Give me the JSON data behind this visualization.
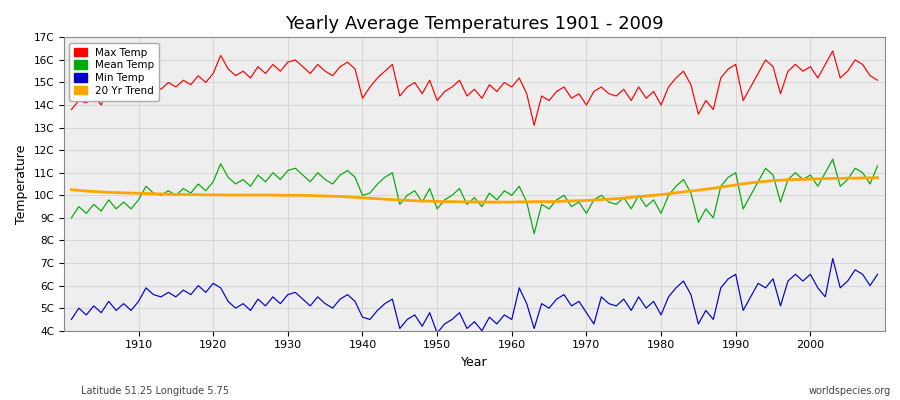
{
  "title": "Yearly Average Temperatures 1901 - 2009",
  "xlabel": "Year",
  "ylabel": "Temperature",
  "subtitle_left": "Latitude 51.25 Longitude 5.75",
  "subtitle_right": "worldspecies.org",
  "years": [
    1901,
    1902,
    1903,
    1904,
    1905,
    1906,
    1907,
    1908,
    1909,
    1910,
    1911,
    1912,
    1913,
    1914,
    1915,
    1916,
    1917,
    1918,
    1919,
    1920,
    1921,
    1922,
    1923,
    1924,
    1925,
    1926,
    1927,
    1928,
    1929,
    1930,
    1931,
    1932,
    1933,
    1934,
    1935,
    1936,
    1937,
    1938,
    1939,
    1940,
    1941,
    1942,
    1943,
    1944,
    1945,
    1946,
    1947,
    1948,
    1949,
    1950,
    1951,
    1952,
    1953,
    1954,
    1955,
    1956,
    1957,
    1958,
    1959,
    1960,
    1961,
    1962,
    1963,
    1964,
    1965,
    1966,
    1967,
    1968,
    1969,
    1970,
    1971,
    1972,
    1973,
    1974,
    1975,
    1976,
    1977,
    1978,
    1979,
    1980,
    1981,
    1982,
    1983,
    1984,
    1985,
    1986,
    1987,
    1988,
    1989,
    1990,
    1991,
    1992,
    1993,
    1994,
    1995,
    1996,
    1997,
    1998,
    1999,
    2000,
    2001,
    2002,
    2003,
    2004,
    2005,
    2006,
    2007,
    2008,
    2009
  ],
  "max_temp": [
    13.8,
    14.2,
    14.1,
    14.4,
    14.0,
    14.8,
    14.3,
    14.5,
    14.2,
    14.6,
    15.2,
    14.9,
    14.7,
    15.0,
    14.8,
    15.1,
    14.9,
    15.3,
    15.0,
    15.4,
    16.2,
    15.6,
    15.3,
    15.5,
    15.2,
    15.7,
    15.4,
    15.8,
    15.5,
    15.9,
    16.0,
    15.7,
    15.4,
    15.8,
    15.5,
    15.3,
    15.7,
    15.9,
    15.6,
    14.3,
    14.8,
    15.2,
    15.5,
    15.8,
    14.4,
    14.8,
    15.0,
    14.5,
    15.1,
    14.2,
    14.6,
    14.8,
    15.1,
    14.4,
    14.7,
    14.3,
    14.9,
    14.6,
    15.0,
    14.8,
    15.2,
    14.5,
    13.1,
    14.4,
    14.2,
    14.6,
    14.8,
    14.3,
    14.5,
    14.0,
    14.6,
    14.8,
    14.5,
    14.4,
    14.7,
    14.2,
    14.8,
    14.3,
    14.6,
    14.0,
    14.8,
    15.2,
    15.5,
    14.9,
    13.6,
    14.2,
    13.8,
    15.2,
    15.6,
    15.8,
    14.2,
    14.8,
    15.4,
    16.0,
    15.7,
    14.5,
    15.5,
    15.8,
    15.5,
    15.7,
    15.2,
    15.8,
    16.4,
    15.2,
    15.5,
    16.0,
    15.8,
    15.3,
    15.1
  ],
  "mean_temp": [
    9.0,
    9.5,
    9.2,
    9.6,
    9.3,
    9.8,
    9.4,
    9.7,
    9.4,
    9.8,
    10.4,
    10.1,
    10.0,
    10.2,
    10.0,
    10.3,
    10.1,
    10.5,
    10.2,
    10.6,
    11.4,
    10.8,
    10.5,
    10.7,
    10.4,
    10.9,
    10.6,
    11.0,
    10.7,
    11.1,
    11.2,
    10.9,
    10.6,
    11.0,
    10.7,
    10.5,
    10.9,
    11.1,
    10.8,
    10.0,
    10.1,
    10.5,
    10.8,
    11.0,
    9.6,
    10.0,
    10.2,
    9.7,
    10.3,
    9.4,
    9.8,
    10.0,
    10.3,
    9.6,
    9.9,
    9.5,
    10.1,
    9.8,
    10.2,
    10.0,
    10.4,
    9.7,
    8.3,
    9.6,
    9.4,
    9.8,
    10.0,
    9.5,
    9.7,
    9.2,
    9.8,
    10.0,
    9.7,
    9.6,
    9.9,
    9.4,
    10.0,
    9.5,
    9.8,
    9.2,
    10.0,
    10.4,
    10.7,
    10.1,
    8.8,
    9.4,
    9.0,
    10.4,
    10.8,
    11.0,
    9.4,
    10.0,
    10.6,
    11.2,
    10.9,
    9.7,
    10.7,
    11.0,
    10.7,
    10.9,
    10.4,
    11.0,
    11.6,
    10.4,
    10.7,
    11.2,
    11.0,
    10.5,
    11.3
  ],
  "min_temp": [
    4.5,
    5.0,
    4.7,
    5.1,
    4.8,
    5.3,
    4.9,
    5.2,
    4.9,
    5.3,
    5.9,
    5.6,
    5.5,
    5.7,
    5.5,
    5.8,
    5.6,
    6.0,
    5.7,
    6.1,
    5.9,
    5.3,
    5.0,
    5.2,
    4.9,
    5.4,
    5.1,
    5.5,
    5.2,
    5.6,
    5.7,
    5.4,
    5.1,
    5.5,
    5.2,
    5.0,
    5.4,
    5.6,
    5.3,
    4.6,
    4.5,
    4.9,
    5.2,
    5.4,
    4.1,
    4.5,
    4.7,
    4.2,
    4.8,
    3.9,
    4.3,
    4.5,
    4.8,
    4.1,
    4.4,
    4.0,
    4.6,
    4.3,
    4.7,
    4.5,
    5.9,
    5.2,
    4.1,
    5.2,
    5.0,
    5.4,
    5.6,
    5.1,
    5.3,
    4.8,
    4.3,
    5.5,
    5.2,
    5.1,
    5.4,
    4.9,
    5.5,
    5.0,
    5.3,
    4.7,
    5.5,
    5.9,
    6.2,
    5.6,
    4.3,
    4.9,
    4.5,
    5.9,
    6.3,
    6.5,
    4.9,
    5.5,
    6.1,
    5.9,
    6.3,
    5.1,
    6.2,
    6.5,
    6.2,
    6.5,
    5.9,
    5.5,
    7.2,
    5.9,
    6.2,
    6.7,
    6.5,
    6.0,
    6.5
  ],
  "trend_temp": [
    10.25,
    10.22,
    10.19,
    10.17,
    10.15,
    10.13,
    10.12,
    10.11,
    10.1,
    10.09,
    10.08,
    10.07,
    10.06,
    10.05,
    10.04,
    10.04,
    10.03,
    10.03,
    10.02,
    10.02,
    10.02,
    10.01,
    10.01,
    10.01,
    10.01,
    10.01,
    10.01,
    10.01,
    10.0,
    10.0,
    10.0,
    10.0,
    9.99,
    9.98,
    9.97,
    9.96,
    9.95,
    9.93,
    9.91,
    9.89,
    9.87,
    9.85,
    9.83,
    9.81,
    9.79,
    9.78,
    9.76,
    9.75,
    9.74,
    9.73,
    9.72,
    9.72,
    9.71,
    9.71,
    9.71,
    9.7,
    9.7,
    9.7,
    9.7,
    9.7,
    9.71,
    9.71,
    9.72,
    9.72,
    9.72,
    9.73,
    9.74,
    9.75,
    9.76,
    9.77,
    9.79,
    9.81,
    9.83,
    9.85,
    9.88,
    9.91,
    9.94,
    9.97,
    10.0,
    10.03,
    10.07,
    10.11,
    10.15,
    10.19,
    10.23,
    10.27,
    10.31,
    10.36,
    10.41,
    10.46,
    10.51,
    10.55,
    10.59,
    10.62,
    10.65,
    10.67,
    10.69,
    10.7,
    10.71,
    10.72,
    10.73,
    10.74,
    10.75,
    10.75,
    10.76,
    10.76,
    10.77,
    10.77,
    10.78
  ],
  "color_max": "#ff0000",
  "color_mean": "#00aa00",
  "color_min": "#0000cc",
  "color_trend": "#ffa500",
  "fig_bg": "#ffffff",
  "plot_bg": "#eeeeee",
  "ylim": [
    4.0,
    17.0
  ],
  "yticks": [
    4,
    5,
    6,
    7,
    8,
    9,
    10,
    11,
    12,
    13,
    14,
    15,
    16,
    17
  ],
  "ytick_labels": [
    "4C",
    "5C",
    "6C",
    "7C",
    "8C",
    "9C",
    "10C",
    "11C",
    "12C",
    "13C",
    "14C",
    "15C",
    "16C",
    "17C"
  ],
  "xtick_start": 1910,
  "xtick_step": 10,
  "xlim_left": 1900,
  "xlim_right": 2010
}
